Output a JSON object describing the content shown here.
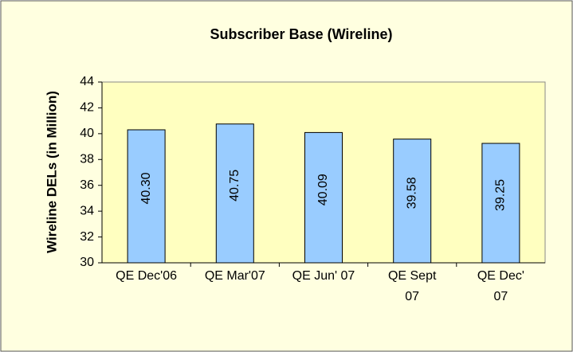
{
  "chart_data": {
    "type": "bar",
    "title": "Subscriber Base (Wireline)",
    "y_label": "Wireline DELs (in Million)",
    "categories": [
      "QE Dec'06",
      "QE Mar'07",
      "QE Jun' 07",
      "QE Sept 07",
      "QE Dec' 07"
    ],
    "values": [
      40.3,
      40.75,
      40.09,
      39.58,
      39.25
    ],
    "value_labels": [
      "40.30",
      "40.75",
      "40.09",
      "39.58",
      "39.25"
    ],
    "color": "#99ccff",
    "ylim": [
      30,
      44
    ],
    "yticks": [
      30,
      32,
      34,
      36,
      38,
      40,
      42,
      44
    ],
    "grid": false
  }
}
